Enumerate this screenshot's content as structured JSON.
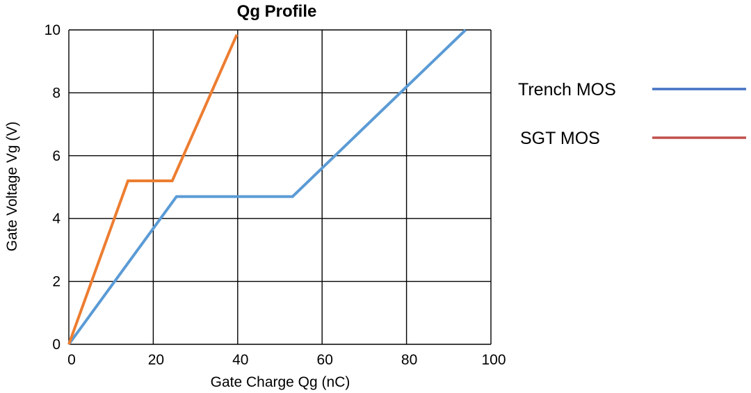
{
  "chart_data": {
    "type": "line",
    "title": "Qg Profile",
    "xlabel": "Gate Charge Qg (nC)",
    "ylabel": "Gate Voltage Vg (V)",
    "xlim": [
      0,
      100
    ],
    "ylim": [
      0,
      10
    ],
    "x_ticks": [
      "0",
      "20",
      "40",
      "60",
      "80",
      "100"
    ],
    "y_ticks": [
      "0",
      "2",
      "4",
      "6",
      "8",
      "10"
    ],
    "grid": true,
    "legend_position": "right",
    "series": [
      {
        "name": "Trench MOS",
        "legend_color": "#4472c4",
        "line_color": "#5b9bd5",
        "x": [
          0,
          25.5,
          53,
          94
        ],
        "y": [
          0,
          4.7,
          4.7,
          10
        ]
      },
      {
        "name": "SGT  MOS",
        "legend_color": "#c0504d",
        "line_color": "#ed7d31",
        "x": [
          0,
          14,
          24.5,
          39.8
        ],
        "y": [
          0,
          5.2,
          5.2,
          9.85
        ]
      }
    ]
  }
}
